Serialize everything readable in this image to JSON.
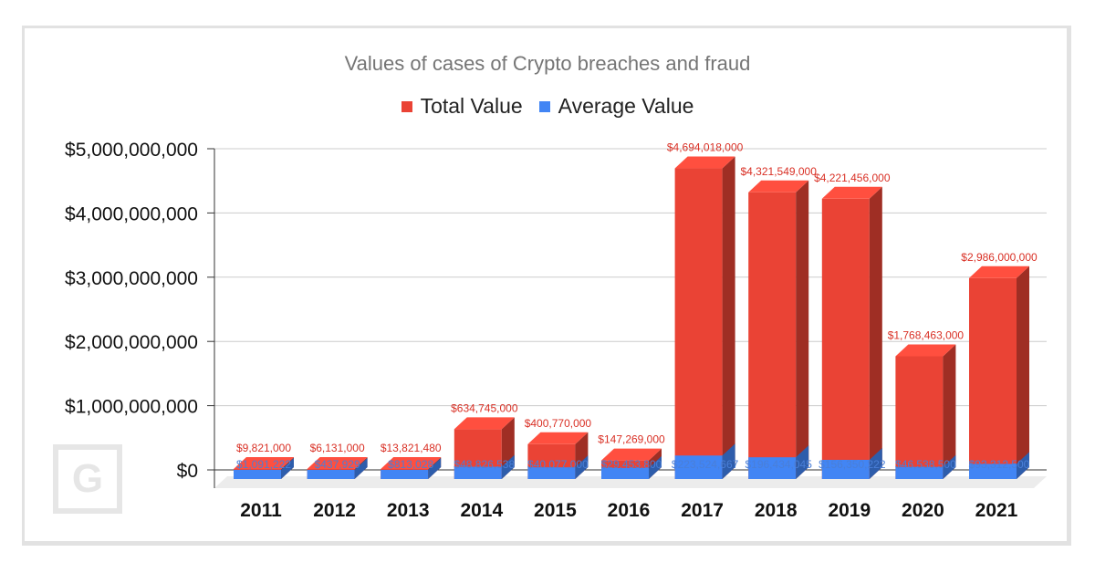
{
  "chart_data": {
    "type": "bar",
    "title": "Values of cases of Crypto breaches and fraud",
    "categories": [
      "2011",
      "2012",
      "2013",
      "2014",
      "2015",
      "2016",
      "2017",
      "2018",
      "2019",
      "2020",
      "2021"
    ],
    "series": [
      {
        "name": "Total Value",
        "color": "#ea4335",
        "values": [
          9821000,
          6131000,
          13821480,
          634745000,
          400770000,
          147269000,
          4694018000,
          4321549000,
          4221456000,
          1768463000,
          2986000000
        ],
        "labels": [
          "$9,821,000",
          "$6,131,000",
          "$13,821,480",
          "$634,745,000",
          "$400,770,000",
          "$147,269,000",
          "$4,694,018,000",
          "$4,321,549,000",
          "$4,221,456,000",
          "$1,768,463,000",
          "$2,986,000,000"
        ]
      },
      {
        "name": "Average Value",
        "color": "#4285f4",
        "values": [
          1091222,
          437929,
          813028,
          48826538,
          40077000,
          29453800,
          223524667,
          196434045,
          156350222,
          46538500,
          93312500
        ],
        "labels": [
          "$1,091,222",
          "$437,929",
          "$813,028",
          "$48,826,538",
          "$40,077,000",
          "$29,453,800",
          "$223,524,667",
          "$196,434,045",
          "$156,350,222",
          "$46,538,500",
          "$93,312,500"
        ]
      }
    ],
    "ylim": [
      0,
      5000000000
    ],
    "yticks": [
      0,
      1000000000,
      2000000000,
      3000000000,
      4000000000,
      5000000000
    ],
    "ytick_labels": [
      "$0",
      "$1,000,000,000",
      "$2,000,000,000",
      "$3,000,000,000",
      "$4,000,000,000",
      "$5,000,000,000"
    ],
    "xlabel": "",
    "ylabel": "",
    "legend_position": "top-center",
    "grid": true
  },
  "logo_text": "G"
}
